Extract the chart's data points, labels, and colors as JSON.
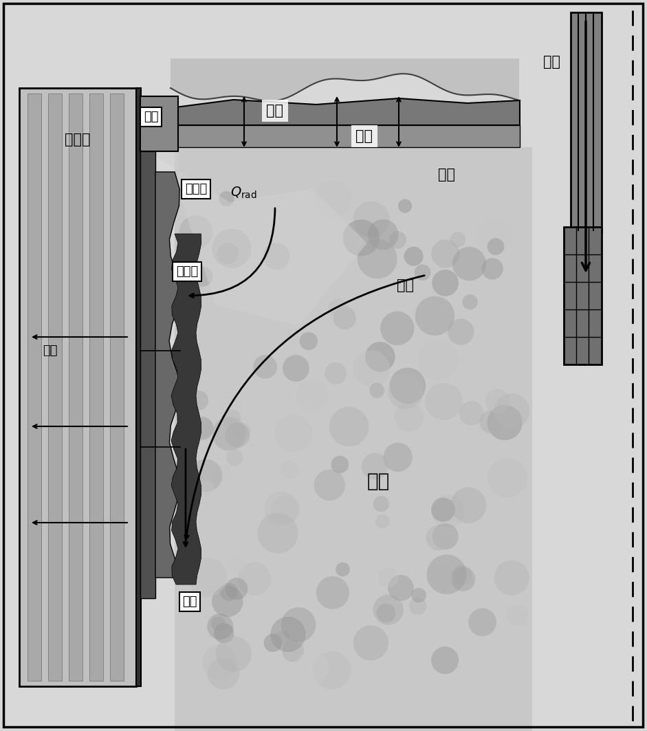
{
  "fig_width": 9.41,
  "fig_height": 10.63,
  "labels": {
    "jiejingqi": "结晶器",
    "shuicao": "水槽",
    "zhaquan": "渣圈",
    "guzhamo": "固渣膜",
    "yezhamo": "液渣膜",
    "huanke": "坯壳",
    "fenzha": "粉渣",
    "shaojie": "烧结",
    "yezha": "液渣",
    "guore": "过热",
    "gangshui": "钢水",
    "shuikou": "水口"
  },
  "colors": {
    "background": "#d8d8d8",
    "mold_fill": "#c0c0c0",
    "mold_channel": "#a8a8a8",
    "mold_face": "#303030",
    "slag_dark": "#787878",
    "slag_medium": "#909090",
    "slag_light": "#b8b8b8",
    "solid_film": "#505050",
    "liquid_film": "#686868",
    "shell": "#383838",
    "steel_bg": "#c8c8c8",
    "nozzle": "#808080",
    "black": "#000000",
    "white": "#ffffff",
    "dark": "#404040"
  }
}
